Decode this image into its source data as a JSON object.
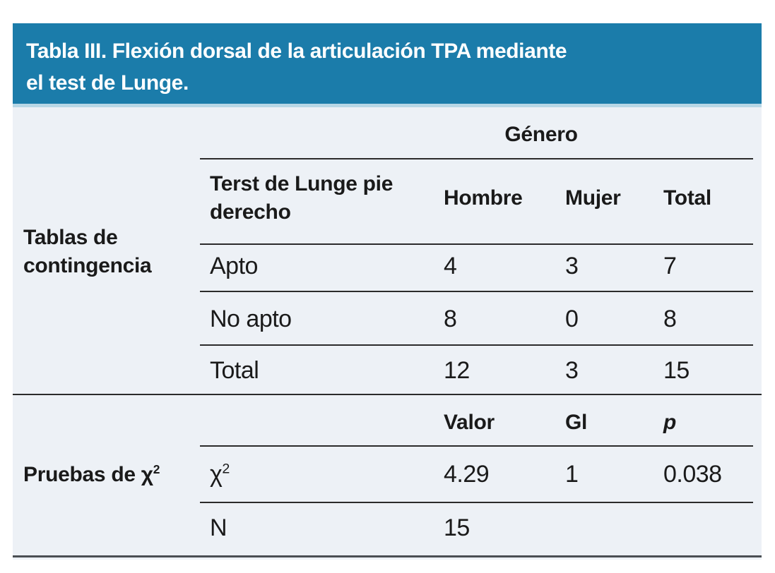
{
  "colors": {
    "title_band": "#1b7caa",
    "title_band_strip": "#b7d7e6",
    "panel_background": "#edf1f6",
    "title_text": "#ffffff",
    "body_text": "#1a1a1a",
    "rule": "#2b2b2b"
  },
  "title": {
    "lines": [
      "Tabla III. Flexión dorsal de la articulación TPA mediante",
      "el test de Lunge."
    ]
  },
  "contingency": {
    "section_label": "Tablas de contingencia",
    "group_header": "Género",
    "row_header": "Terst de Lunge pie derecho",
    "columns": [
      "Hombre",
      "Mujer",
      "Total"
    ],
    "rows": [
      {
        "label": "Apto",
        "hombre": "4",
        "mujer": "3",
        "total": "7"
      },
      {
        "label": "No apto",
        "hombre": "8",
        "mujer": "0",
        "total": "8"
      },
      {
        "label": "Total",
        "hombre": "12",
        "mujer": "3",
        "total": "15"
      }
    ]
  },
  "chi_tests": {
    "section_label_base": "Pruebas de χ",
    "section_label_sup": "2",
    "columns": [
      "Valor",
      "Gl",
      "p"
    ],
    "rows": [
      {
        "label_base": "χ",
        "label_sup": "2",
        "valor": "4.29",
        "gl": "1",
        "p": "0.038"
      },
      {
        "label_base": "N",
        "label_sup": "",
        "valor": "15",
        "gl": "",
        "p": ""
      }
    ]
  }
}
